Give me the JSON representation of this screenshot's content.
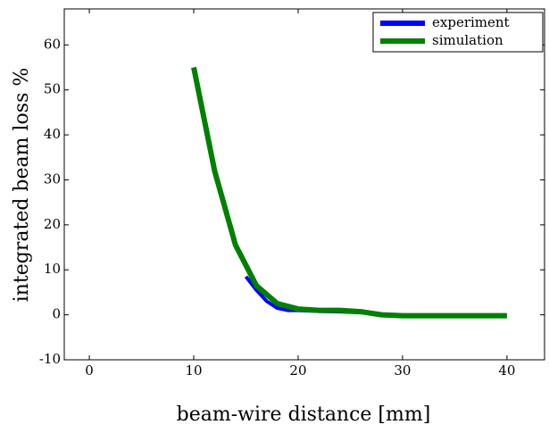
{
  "chart_data": {
    "type": "line",
    "xlabel": "beam-wire distance [mm]",
    "ylabel": "integrated beam loss %",
    "xlim": [
      -2.4,
      43.6
    ],
    "xticks": [
      0,
      10,
      20,
      30,
      40
    ],
    "ylim": [
      -10,
      68
    ],
    "yticks": [
      -10,
      0,
      10,
      20,
      30,
      40,
      50,
      60
    ],
    "legend": "upper right",
    "series": [
      {
        "name": "experiment",
        "color": "#0000ff",
        "x": [
          15,
          16,
          17,
          18,
          19,
          20,
          22,
          24,
          26
        ],
        "values": [
          8.5,
          5.5,
          3,
          1.5,
          1,
          1,
          0.8,
          0.7,
          0.5
        ]
      },
      {
        "name": "simulation",
        "color": "#007f00",
        "x": [
          10,
          12,
          14,
          16,
          18,
          20,
          22,
          24,
          26,
          28,
          30,
          40
        ],
        "values": [
          55,
          32,
          15.5,
          6.5,
          2.5,
          1.3,
          1,
          1,
          0.7,
          0,
          -0.2,
          -0.2
        ]
      }
    ]
  }
}
